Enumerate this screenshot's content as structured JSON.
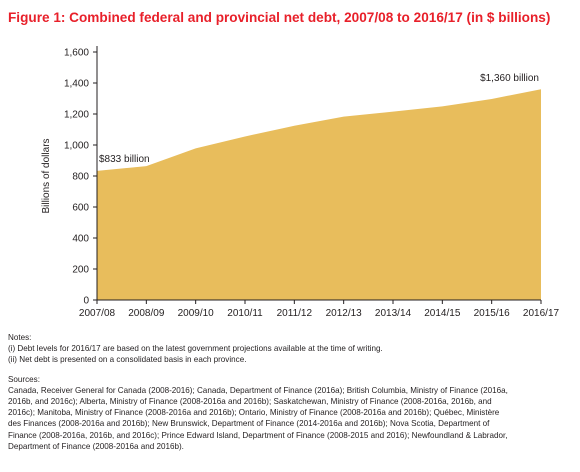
{
  "title": "Figure 1: Combined federal and provincial net debt, 2007/08 to 2016/17 (in $ billions)",
  "colors": {
    "title": "#e8202a",
    "area": "#e8bd5c",
    "axis": "#231f20"
  },
  "chart_data": {
    "type": "area",
    "categories": [
      "2007/08",
      "2008/09",
      "2009/10",
      "2010/11",
      "2011/12",
      "2012/13",
      "2013/14",
      "2014/15",
      "2015/16",
      "2016/17"
    ],
    "series": [
      {
        "values": [
          833,
          864,
          978,
          1055,
          1124,
          1183,
          1215,
          1249,
          1297,
          1360
        ]
      }
    ],
    "ylabel": "Billions of dollars",
    "xlabel": "",
    "ylim": [
      0,
      1600
    ],
    "yticks": [
      0,
      200,
      400,
      600,
      800,
      "1,000",
      "1,200",
      "1,400",
      "1,600"
    ],
    "yticks_values": [
      0,
      200,
      400,
      600,
      800,
      1000,
      1200,
      1400,
      1600
    ],
    "grid": false,
    "annotations": [
      {
        "text": "$833 billion",
        "category_index": 0
      },
      {
        "text": "$1,360 billion",
        "category_index": 9
      }
    ]
  },
  "notes": {
    "heading": "Notes:",
    "lines": [
      "(i) Debt levels for 2016/17 are based on the latest government projections available at the time of writing.",
      "(ii) Net debt is presented on a consolidated basis in each province."
    ]
  },
  "sources": {
    "heading": "Sources:",
    "lines": [
      "Canada, Receiver General for Canada (2008-2016); Canada, Department of Finance (2016a); British Columbia, Ministry of Finance (2016a,",
      "2016b, and 2016c); Alberta, Ministry of Finance (2008-2016a and 2016b);  Saskatchewan, Ministry of Finance (2008-2016a, 2016b, and",
      "2016c);  Manitoba, Ministry of Finance (2008-2016a and 2016b); Ontario, Ministry of Finance (2008-2016a and 2016b); Québec, Ministère",
      "des Finances (2008-2016a and 2016b); New Brunswick, Department of Finance (2014-2016a and 2016b); Nova Scotia, Department of",
      "Finance (2008-2016a, 2016b, and 2016c); Prince Edward Island, Department of Finance (2008-2015 and 2016); Newfoundland & Labrador,",
      "Department of Finance (2008-2016a and 2016b)."
    ]
  }
}
